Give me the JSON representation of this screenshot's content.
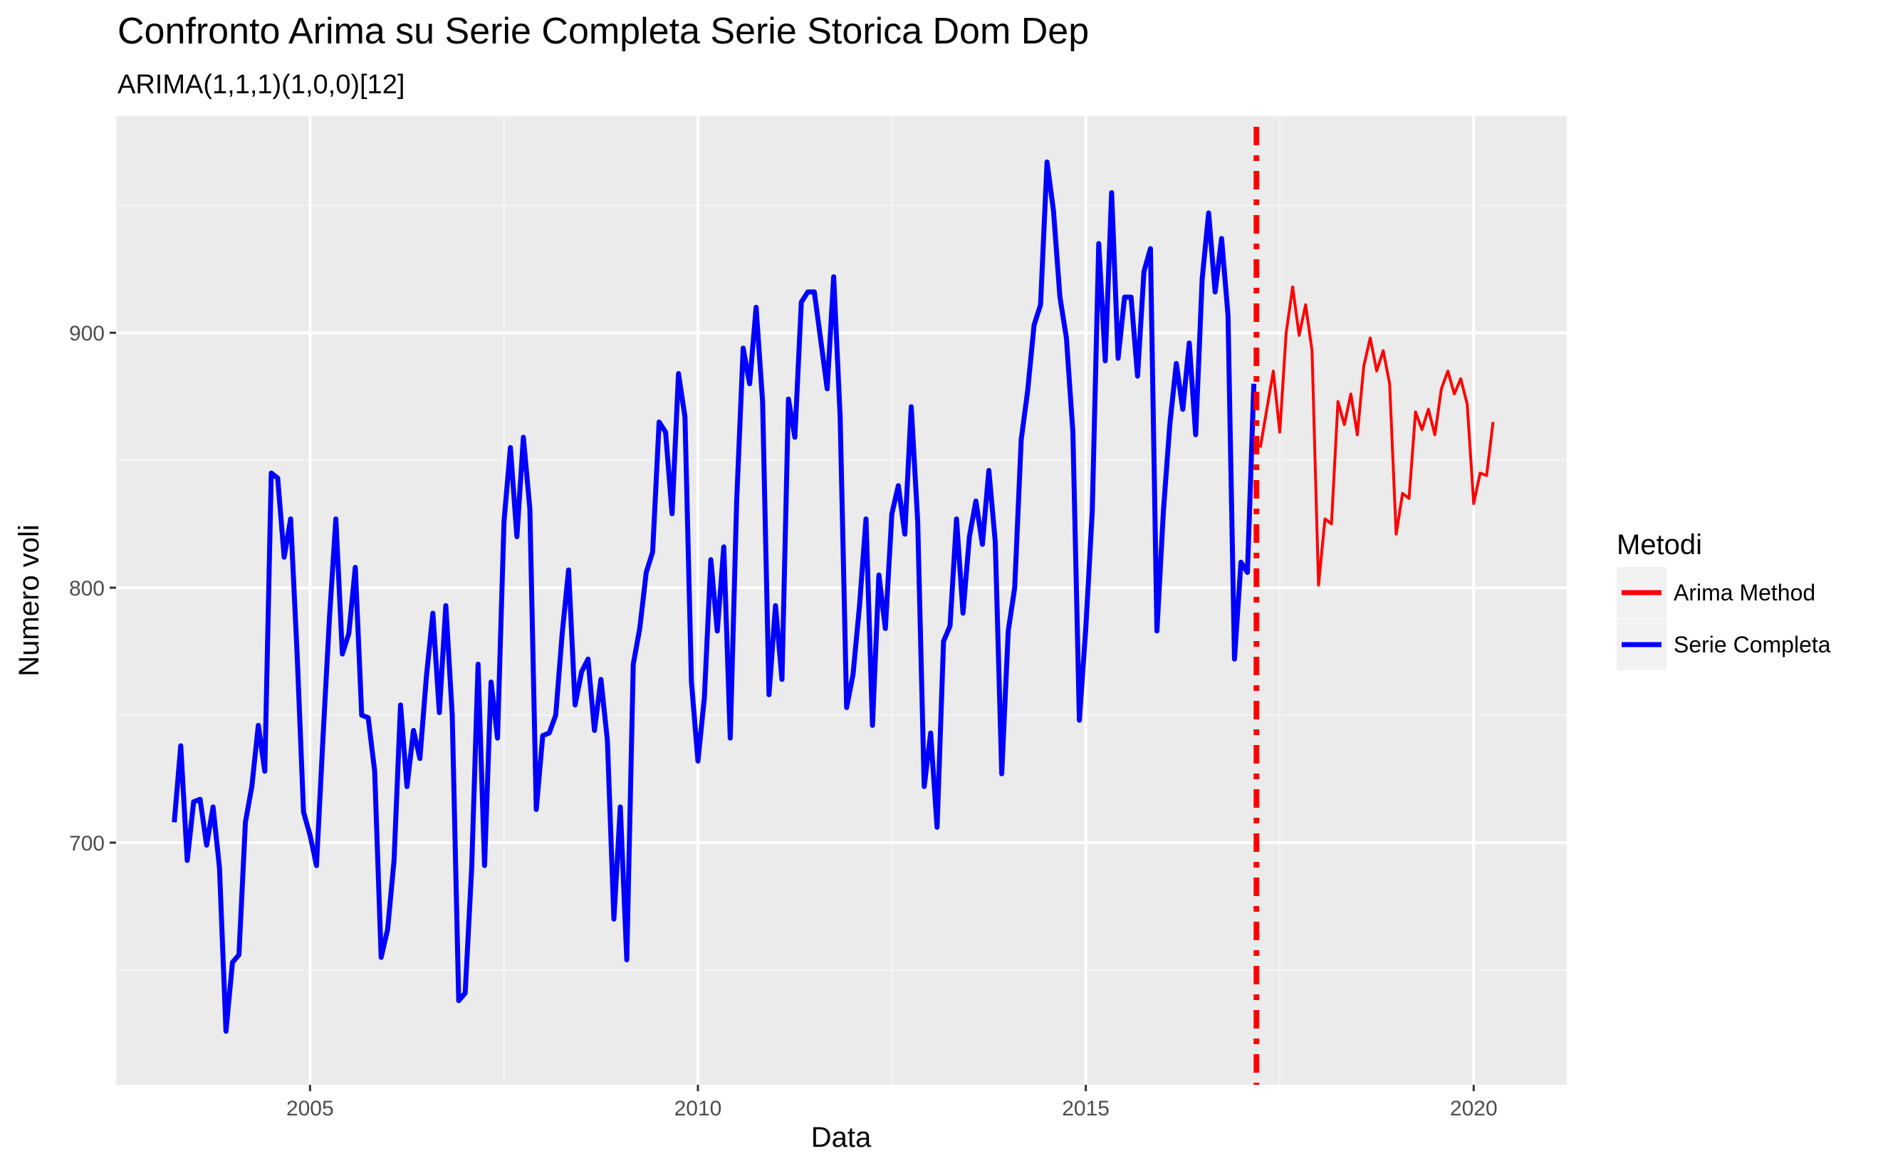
{
  "chart_data": {
    "type": "line",
    "title": "Confronto Arima su Serie Completa Serie Storica Dom Dep",
    "subtitle": "ARIMA(1,1,1)(1,0,0)[12]",
    "xlabel": "Data",
    "ylabel": "Numero voli",
    "xlim": [
      2002.5,
      2021.2
    ],
    "ylim": [
      605,
      985
    ],
    "x_ticks": [
      2005,
      2010,
      2015,
      2020
    ],
    "x_tick_labels": [
      "2005",
      "2010",
      "2015",
      "2020"
    ],
    "y_ticks": [
      700,
      800,
      900
    ],
    "y_tick_labels": [
      "700",
      "800",
      "900"
    ],
    "grid": true,
    "legend": {
      "title": "Metodi",
      "position": "right"
    },
    "vline": {
      "x": 2017.2,
      "color": "#ff0000",
      "style": "dot-dash"
    },
    "series": [
      {
        "name": "Arima Method",
        "color": "#ff0000",
        "start": 2017.25,
        "step": 0.0833333,
        "values": [
          855,
          870,
          885,
          861,
          900,
          918,
          899,
          911,
          893,
          801,
          827,
          825,
          873,
          864,
          876,
          860,
          887,
          898,
          885,
          893,
          880,
          821,
          837,
          835,
          869,
          862,
          870,
          860,
          878,
          885,
          876,
          882,
          872,
          833,
          845,
          844,
          865
        ]
      },
      {
        "name": "Serie Completa",
        "color": "#0000ff",
        "start": 2003.25,
        "step": 0.0833333,
        "values": [
          708,
          738,
          693,
          716,
          717,
          699,
          714,
          690,
          626,
          653,
          656,
          708,
          722,
          746,
          728,
          845,
          843,
          812,
          827,
          774,
          712,
          703,
          691,
          741,
          788,
          827,
          774,
          782,
          808,
          750,
          749,
          728,
          655,
          666,
          693,
          754,
          722,
          744,
          733,
          765,
          790,
          751,
          793,
          750,
          638,
          641,
          690,
          770,
          691,
          763,
          741,
          826,
          855,
          820,
          859,
          831,
          713,
          742,
          743,
          750,
          782,
          807,
          754,
          767,
          772,
          744,
          764,
          740,
          670,
          714,
          654,
          770,
          784,
          806,
          814,
          865,
          861,
          829,
          884,
          867,
          763,
          732,
          757,
          811,
          783,
          816,
          741,
          834,
          894,
          880,
          910,
          873,
          758,
          793,
          764,
          874,
          859,
          912,
          916,
          916,
          897,
          878,
          922,
          867,
          753,
          766,
          793,
          827,
          746,
          805,
          784,
          829,
          840,
          821,
          871,
          826,
          722,
          743,
          706,
          779,
          785,
          827,
          790,
          820,
          834,
          817,
          846,
          818,
          727,
          783,
          800,
          858,
          877,
          903,
          911,
          967,
          948,
          914,
          898,
          861,
          748,
          784,
          830,
          935,
          889,
          955,
          890,
          914,
          914,
          883,
          924,
          933,
          783,
          830,
          864,
          888,
          870,
          896,
          860,
          921,
          947,
          916,
          937,
          907,
          772,
          810,
          806,
          880
        ]
      }
    ]
  }
}
